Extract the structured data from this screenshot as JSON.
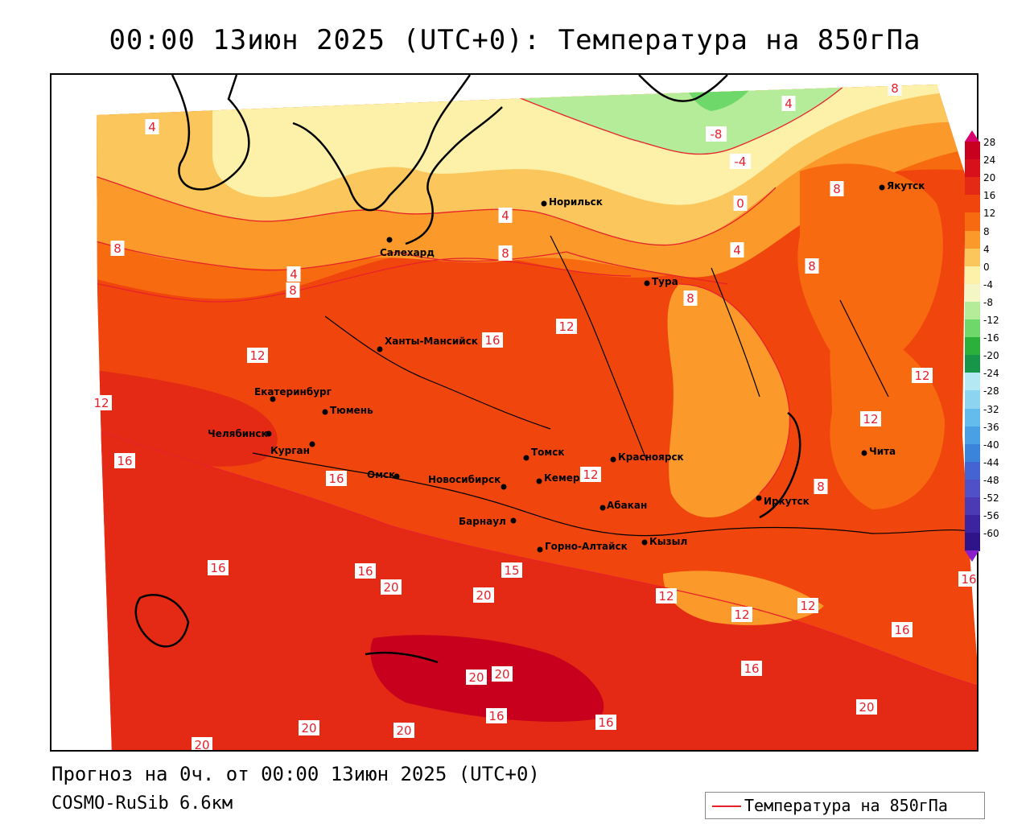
{
  "title": "00:00 13июн 2025 (UTC+0): Температура на 850гПа",
  "footer": {
    "forecast": "Прогноз на 0ч. от 00:00 13июн 2025 (UTC+0)",
    "model": "COSMO-RuSib 6.6км"
  },
  "legend": {
    "label": "Температура на 850гПа",
    "line_color": "#e8202a"
  },
  "colorbar": {
    "ticks": [
      "28",
      "24",
      "20",
      "16",
      "12",
      "8",
      "4",
      "0",
      "-4",
      "-8",
      "-12",
      "-16",
      "-20",
      "-24",
      "-28",
      "-32",
      "-36",
      "-40",
      "-44",
      "-48",
      "-52",
      "-56",
      "-60"
    ],
    "colors": [
      "#c8001e",
      "#d8101c",
      "#e42a14",
      "#f0460e",
      "#f86a10",
      "#fb9a2a",
      "#fbc65c",
      "#fdf0a8",
      "#f4f6c6",
      "#b4ec9a",
      "#6ed86a",
      "#2cb03c",
      "#17964a",
      "#b4e8f2",
      "#8cd4f0",
      "#64bcec",
      "#4aa0e4",
      "#3a84dc",
      "#4464d4",
      "#5050c8",
      "#4c3ab4",
      "#3c24a0",
      "#2e1488"
    ],
    "top_color": "#d6006e",
    "bottom_color": "#8a1ec8"
  },
  "cities": [
    {
      "name": "Норильск"
    },
    {
      "name": "Якутск"
    },
    {
      "name": "Салехард"
    },
    {
      "name": "Тура"
    },
    {
      "name": "Ханты-Мансийск"
    },
    {
      "name": "Екатеринбург"
    },
    {
      "name": "Тюмень"
    },
    {
      "name": "Челябинск"
    },
    {
      "name": "Курган"
    },
    {
      "name": "Омск"
    },
    {
      "name": "Новосибирск"
    },
    {
      "name": "Томск"
    },
    {
      "name": "Кемерово"
    },
    {
      "name": "Красноярск"
    },
    {
      "name": "Абакан"
    },
    {
      "name": "Барнаул"
    },
    {
      "name": "Горно-Алтайск"
    },
    {
      "name": "Кызыл"
    },
    {
      "name": "Иркутск"
    },
    {
      "name": "Чита"
    }
  ],
  "contour_labels": [
    "4",
    "4",
    "8",
    "-8",
    "-4",
    "0",
    "4",
    "8",
    "8",
    "4",
    "8",
    "4",
    "8",
    "8",
    "8",
    "12",
    "16",
    "12",
    "12",
    "12",
    "8",
    "12",
    "12",
    "16",
    "16",
    "12",
    "16",
    "16",
    "20",
    "20",
    "15",
    "12",
    "12",
    "16",
    "16",
    "20",
    "20",
    "16",
    "16",
    "20",
    "20",
    "20",
    "16",
    "20"
  ]
}
